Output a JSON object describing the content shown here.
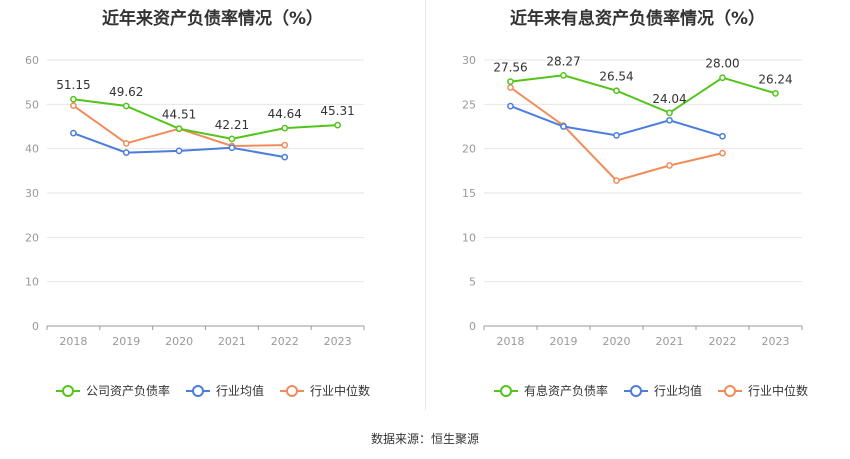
{
  "chart_data": [
    {
      "type": "line",
      "title": "近年来资产负债率情况（%）",
      "categories": [
        "2018",
        "2019",
        "2020",
        "2021",
        "2022",
        "2023"
      ],
      "ylim": [
        0,
        60
      ],
      "yticks": [
        0,
        10,
        20,
        30,
        40,
        50,
        60
      ],
      "grid": true,
      "legend_position": "bottom",
      "series": [
        {
          "name": "公司资产负债率",
          "values": [
            51.15,
            49.62,
            44.51,
            42.21,
            44.64,
            45.31
          ],
          "color": "#52c41a",
          "show_labels": true
        },
        {
          "name": "行业均值",
          "values": [
            43.5,
            39.1,
            39.5,
            40.2,
            38.1,
            null
          ],
          "color": "#4a7ddc",
          "show_labels": false
        },
        {
          "name": "行业中位数",
          "values": [
            49.7,
            41.2,
            44.5,
            40.6,
            40.8,
            null
          ],
          "color": "#f08c5a",
          "show_labels": false
        }
      ]
    },
    {
      "type": "line",
      "title": "近年来有息资产负债率情况（%）",
      "categories": [
        "2018",
        "2019",
        "2020",
        "2021",
        "2022",
        "2023"
      ],
      "ylim": [
        0,
        30
      ],
      "yticks": [
        0,
        5,
        10,
        15,
        20,
        25,
        30
      ],
      "grid": true,
      "legend_position": "bottom",
      "series": [
        {
          "name": "有息资产负债率",
          "values": [
            27.56,
            28.27,
            26.54,
            24.04,
            28.0,
            26.24
          ],
          "color": "#52c41a",
          "show_labels": true
        },
        {
          "name": "行业均值",
          "values": [
            24.8,
            22.5,
            21.5,
            23.2,
            21.4,
            null
          ],
          "color": "#4a7ddc",
          "show_labels": false
        },
        {
          "name": "行业中位数",
          "values": [
            26.9,
            22.6,
            16.4,
            18.1,
            19.5,
            null
          ],
          "color": "#f08c5a",
          "show_labels": false
        }
      ]
    }
  ],
  "footer": {
    "source": "数据来源：恒生聚源"
  }
}
